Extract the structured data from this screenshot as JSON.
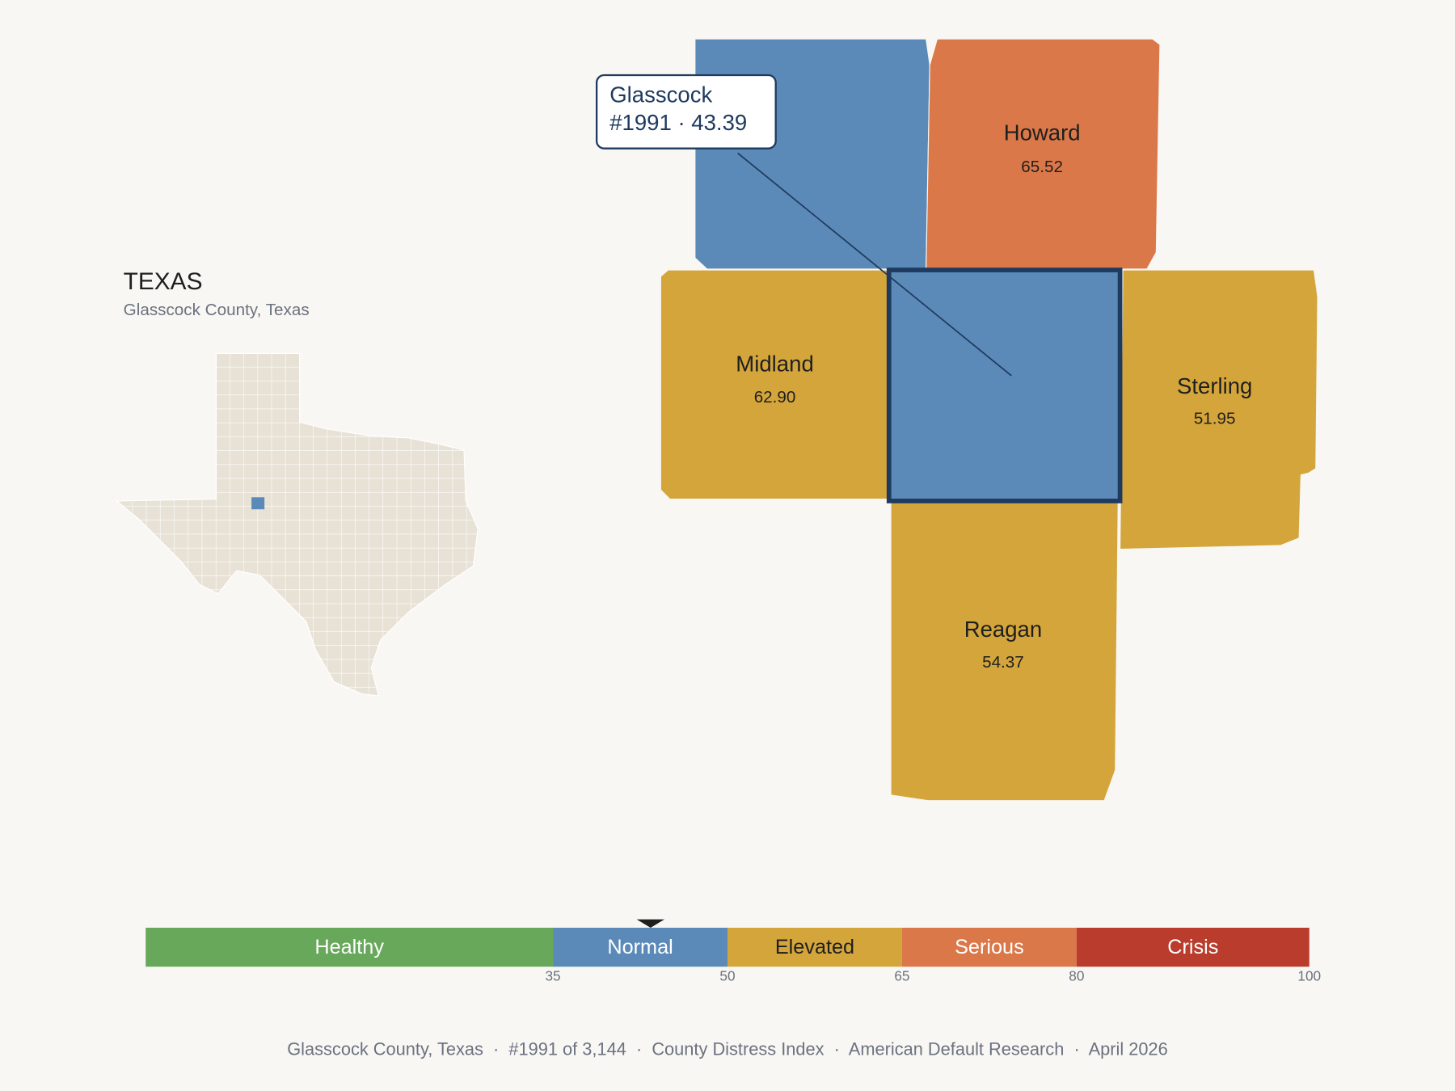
{
  "header": {
    "title": "TEXAS",
    "subtitle": "Glasscock County, Texas"
  },
  "tooltip": {
    "name": "Glasscock",
    "detail": "#1991 · 43.39"
  },
  "counties": [
    {
      "name": "Howard",
      "value": "65.52"
    },
    {
      "name": "Midland",
      "value": "62.90"
    },
    {
      "name": "Sterling",
      "value": "51.95"
    },
    {
      "name": "Reagan",
      "value": "54.37"
    }
  ],
  "scale": {
    "lim": [
      0,
      100
    ],
    "ticks": [
      35,
      50,
      65,
      80,
      100
    ],
    "marker": 43.39,
    "bands": [
      {
        "label": "Healthy",
        "color": "#67a85a",
        "text_color": "#ffffff"
      },
      {
        "label": "Normal",
        "color": "#5b8ab8",
        "text_color": "#ffffff"
      },
      {
        "label": "Elevated",
        "color": "#d4a53a",
        "text_color": "#1f1f1f"
      },
      {
        "label": "Serious",
        "color": "#db7849",
        "text_color": "#ffffff"
      },
      {
        "label": "Crisis",
        "color": "#b93c2c",
        "text_color": "#ffffff"
      }
    ]
  },
  "footer": "Glasscock County, Texas  ·  #1991 of 3,144  ·  County Distress Index  ·  American Default Research  ·  April 2026"
}
